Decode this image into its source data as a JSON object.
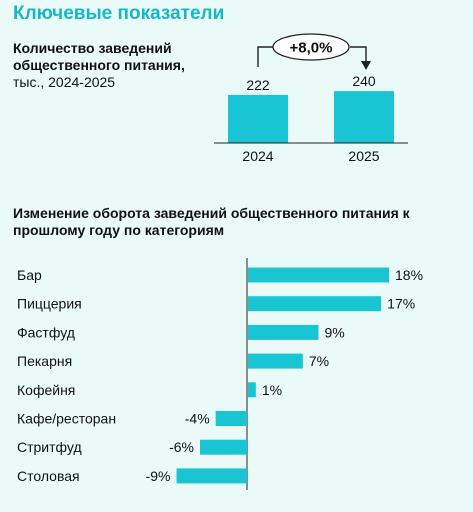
{
  "page_title": "Ключевые показатели",
  "accent_color": "#19c5d2",
  "kpi": {
    "title_bold": "Количество заведений общественного питания,",
    "title_unit": "тыс., 2024-2025",
    "growth_label": "+8,0%"
  },
  "category_chart": {
    "title": "Изменение оборота заведений общественного питания к прошлому году по категориям"
  },
  "chart_data": [
    {
      "type": "bar",
      "categories": [
        "2024",
        "2025"
      ],
      "values": [
        222,
        240
      ],
      "data_labels": [
        "222",
        "240"
      ],
      "annotation": "+8,0%"
    },
    {
      "type": "bar",
      "orientation": "horizontal",
      "categories": [
        "Бар",
        "Пиццерия",
        "Фастфуд",
        "Пекарня",
        "Кофейня",
        "Кафе/ресторан",
        "Стритфуд",
        "Столовая"
      ],
      "values": [
        18,
        17,
        9,
        7,
        1,
        -4,
        -6,
        -9
      ],
      "data_labels": [
        "18%",
        "17%",
        "9%",
        "7%",
        "1%",
        "-4%",
        "-6%",
        "-9%"
      ],
      "xlim": [
        -9,
        18
      ]
    }
  ]
}
